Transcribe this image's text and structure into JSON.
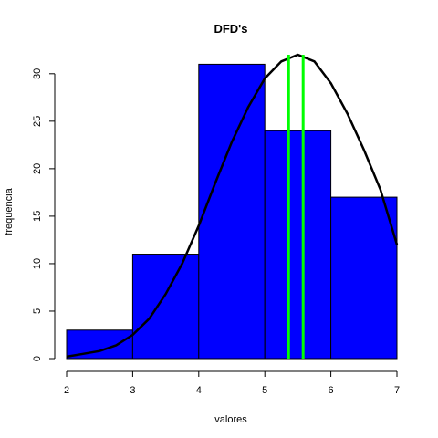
{
  "chart_data": {
    "type": "bar",
    "title": "DFD's",
    "xlabel": "valores",
    "ylabel": "frequencia",
    "bins": [
      {
        "from": 2,
        "to": 3,
        "value": 3
      },
      {
        "from": 3,
        "to": 4,
        "value": 11
      },
      {
        "from": 4,
        "to": 5,
        "value": 31
      },
      {
        "from": 5,
        "to": 6,
        "value": 24
      },
      {
        "from": 6,
        "to": 7,
        "value": 17
      }
    ],
    "xlim": [
      2,
      7
    ],
    "ylim": [
      0,
      32
    ],
    "x_ticks": [
      2,
      3,
      4,
      5,
      6,
      7
    ],
    "y_ticks": [
      0,
      5,
      10,
      15,
      20,
      25,
      30
    ],
    "bar_color": "#0000ff",
    "bar_border_color": "#000000",
    "curve": {
      "color": "#000000",
      "points": [
        [
          2.0,
          0.2
        ],
        [
          2.25,
          0.5
        ],
        [
          2.5,
          0.8
        ],
        [
          2.75,
          1.4
        ],
        [
          3.0,
          2.5
        ],
        [
          3.25,
          4.2
        ],
        [
          3.5,
          6.8
        ],
        [
          3.75,
          10.0
        ],
        [
          4.0,
          14.0
        ],
        [
          4.25,
          18.5
        ],
        [
          4.5,
          22.8
        ],
        [
          4.75,
          26.5
        ],
        [
          5.0,
          29.5
        ],
        [
          5.25,
          31.3
        ],
        [
          5.5,
          32.0
        ],
        [
          5.75,
          31.3
        ],
        [
          6.0,
          29.0
        ],
        [
          6.25,
          25.8
        ],
        [
          6.5,
          22.0
        ],
        [
          6.75,
          17.8
        ],
        [
          7.0,
          12.0
        ]
      ]
    },
    "vertical_lines": {
      "color": "#00ff00",
      "x": [
        5.36,
        5.58
      ]
    }
  }
}
